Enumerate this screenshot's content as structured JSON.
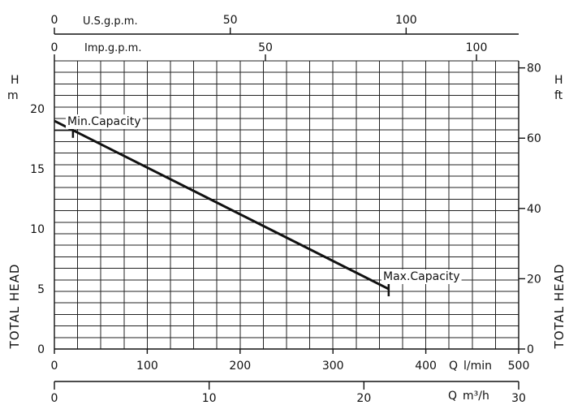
{
  "chart_data": {
    "type": "line",
    "series": [
      {
        "x": [
          0,
          360
        ],
        "y": [
          19,
          5
        ]
      }
    ],
    "x_axes": {
      "lpm": {
        "ticks": [
          0,
          100,
          200,
          300,
          400,
          500
        ],
        "range": [
          0,
          500
        ],
        "label_q": "Q",
        "label_unit": "l/min"
      },
      "m3h": {
        "ticks": [
          0,
          10,
          20,
          30
        ],
        "range": [
          0,
          30
        ],
        "label_q": "Q",
        "label_unit": "m³/h"
      },
      "usgpm": {
        "ticks": [
          0,
          50,
          100
        ],
        "range": [
          0,
          132
        ],
        "label": "U.S.g.p.m."
      },
      "impgpm": {
        "ticks": [
          0,
          50,
          100
        ],
        "range": [
          0,
          110
        ],
        "label": "Imp.g.p.m."
      }
    },
    "y_axes": {
      "m": {
        "ticks": [
          0,
          5,
          10,
          15,
          20
        ],
        "range": [
          0,
          24
        ],
        "unit_h": "H",
        "unit": "m",
        "title": "TOTAL HEAD"
      },
      "ft": {
        "ticks": [
          0,
          20,
          40,
          60,
          80
        ],
        "range": [
          0,
          82
        ],
        "unit_h": "H",
        "unit": "ft",
        "title": "TOTAL HEAD"
      }
    },
    "annotations": {
      "min": {
        "text": "Min.Capacity",
        "x": 20,
        "y": 18.2
      },
      "max": {
        "text": "Max.Capacity",
        "x": 360,
        "y": 5
      }
    },
    "grid": true,
    "legend": "none"
  }
}
